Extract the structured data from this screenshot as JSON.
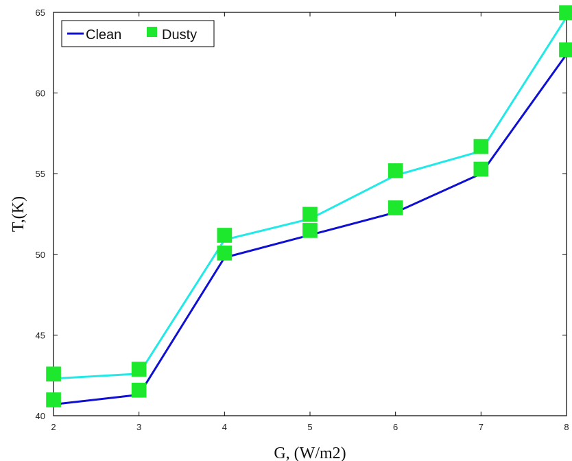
{
  "chart_data": {
    "type": "line",
    "title": "",
    "xlabel": "G, (W/m2)",
    "ylabel": "T,(K)",
    "xlim": [
      2,
      8
    ],
    "ylim": [
      40,
      65
    ],
    "x_ticks": [
      "2",
      "3",
      "4",
      "5",
      "6",
      "7",
      "8"
    ],
    "y_ticks": [
      "40",
      "45",
      "50",
      "55",
      "60",
      "65"
    ],
    "x": [
      2,
      3,
      4,
      5,
      6,
      7,
      8
    ],
    "grid": false,
    "legend_position": "top-left",
    "marker": "square",
    "marker_color": "#1ee82e",
    "series": [
      {
        "name": "Clean",
        "color": "#1010d0",
        "values": [
          40.7,
          41.3,
          49.8,
          51.2,
          52.6,
          55.0,
          62.4
        ]
      },
      {
        "name": "Dusty",
        "color": "#22e8e8",
        "values": [
          42.3,
          42.6,
          50.9,
          52.2,
          54.9,
          56.4,
          64.7
        ]
      }
    ]
  }
}
